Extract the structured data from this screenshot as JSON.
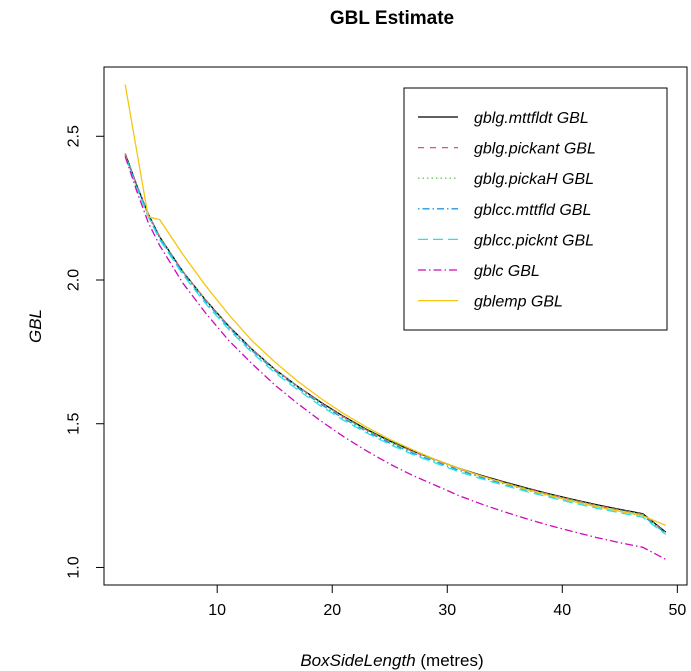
{
  "chart_data": {
    "type": "line",
    "title": "GBL Estimate",
    "xlabel": {
      "italic": "BoxSideLength",
      "unit": " (metres)"
    },
    "ylabel": "GBL",
    "xlim": [
      0.16,
      50.84
    ],
    "ylim": [
      0.939,
      2.741
    ],
    "x_ticks": [
      10,
      20,
      30,
      40,
      50
    ],
    "y_ticks": [
      1.0,
      1.5,
      2.0,
      2.5
    ],
    "y_tick_labels": [
      "1.0",
      "1.5",
      "2.0",
      "2.5"
    ],
    "grid": false,
    "legend_position": "top-right",
    "x": [
      2,
      3,
      4,
      5,
      7,
      9,
      11,
      13,
      15,
      17,
      19,
      21,
      23,
      25,
      27,
      29,
      31,
      33,
      35,
      37,
      39,
      41,
      43,
      45,
      47,
      49
    ],
    "series": [
      {
        "name": "gblg.mttfldt GBL",
        "color": "#000000",
        "dash": "",
        "values": [
          2.44,
          2.33,
          2.23,
          2.15,
          2.03,
          1.93,
          1.84,
          1.76,
          1.69,
          1.63,
          1.575,
          1.525,
          1.48,
          1.44,
          1.405,
          1.375,
          1.345,
          1.32,
          1.297,
          1.275,
          1.255,
          1.236,
          1.218,
          1.202,
          1.187,
          1.123
        ]
      },
      {
        "name": "gblg.pickant GBL",
        "color": "#df536b",
        "dash": "6,6",
        "values": [
          2.44,
          2.33,
          2.23,
          2.15,
          2.03,
          1.93,
          1.84,
          1.76,
          1.69,
          1.63,
          1.573,
          1.523,
          1.478,
          1.438,
          1.403,
          1.373,
          1.343,
          1.318,
          1.295,
          1.273,
          1.253,
          1.234,
          1.216,
          1.2,
          1.185,
          1.121
        ]
      },
      {
        "name": "gblg.pickaH GBL",
        "color": "#61d04f",
        "dash": "1.5,3",
        "values": [
          2.44,
          2.33,
          2.23,
          2.15,
          2.03,
          1.93,
          1.84,
          1.76,
          1.69,
          1.63,
          1.573,
          1.523,
          1.478,
          1.438,
          1.403,
          1.373,
          1.343,
          1.318,
          1.295,
          1.273,
          1.253,
          1.234,
          1.216,
          1.2,
          1.185,
          1.121
        ]
      },
      {
        "name": "gblcc.mttfld GBL",
        "color": "#2297e6",
        "dash": "1.5,3,7,3",
        "values": [
          2.435,
          2.325,
          2.225,
          2.145,
          2.025,
          1.925,
          1.835,
          1.755,
          1.685,
          1.625,
          1.568,
          1.518,
          1.473,
          1.433,
          1.398,
          1.368,
          1.338,
          1.313,
          1.29,
          1.268,
          1.248,
          1.229,
          1.211,
          1.195,
          1.18,
          1.118
        ]
      },
      {
        "name": "gblcc.picknt GBL",
        "color": "#28e2e5",
        "dash": "10,5",
        "values": [
          2.43,
          2.32,
          2.22,
          2.14,
          2.02,
          1.918,
          1.828,
          1.748,
          1.678,
          1.618,
          1.562,
          1.512,
          1.468,
          1.428,
          1.393,
          1.363,
          1.333,
          1.308,
          1.285,
          1.263,
          1.243,
          1.224,
          1.206,
          1.19,
          1.175,
          1.115
        ]
      },
      {
        "name": "gblc GBL",
        "color": "#cd0bbc",
        "dash": "8,3,1.5,3",
        "values": [
          2.43,
          2.31,
          2.2,
          2.12,
          1.99,
          1.885,
          1.79,
          1.71,
          1.635,
          1.57,
          1.51,
          1.455,
          1.405,
          1.36,
          1.32,
          1.285,
          1.25,
          1.22,
          1.193,
          1.168,
          1.145,
          1.124,
          1.104,
          1.086,
          1.07,
          1.028
        ]
      },
      {
        "name": "gblemp GBL",
        "color": "#f5c710",
        "dash": "",
        "values": [
          2.68,
          2.45,
          2.22,
          2.21,
          2.09,
          1.98,
          1.88,
          1.79,
          1.715,
          1.648,
          1.588,
          1.535,
          1.488,
          1.446,
          1.409,
          1.375,
          1.345,
          1.318,
          1.293,
          1.27,
          1.249,
          1.229,
          1.211,
          1.195,
          1.18,
          1.146
        ]
      }
    ]
  }
}
